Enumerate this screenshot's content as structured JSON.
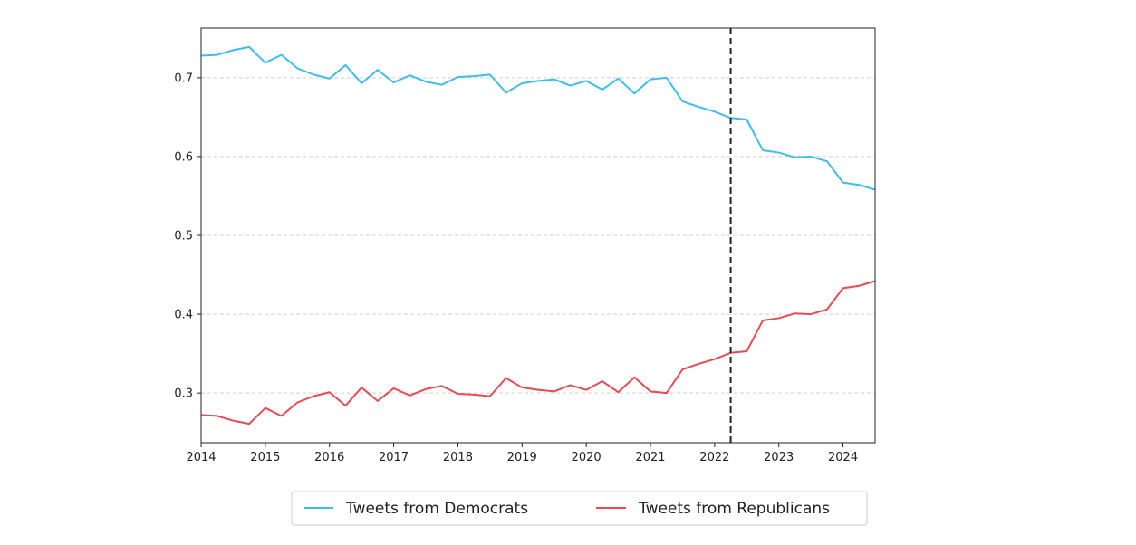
{
  "chart_data": {
    "type": "line",
    "title": "",
    "xlabel": "",
    "ylabel": "",
    "xlim": [
      2014.0,
      2024.5
    ],
    "ylim": [
      0.237,
      0.763
    ],
    "x_ticks": [
      2014,
      2015,
      2016,
      2017,
      2018,
      2019,
      2020,
      2021,
      2022,
      2023,
      2024
    ],
    "x_tick_labels": [
      "2014",
      "2015",
      "2016",
      "2017",
      "2018",
      "2019",
      "2020",
      "2021",
      "2022",
      "2023",
      "2024"
    ],
    "y_ticks": [
      0.3,
      0.4,
      0.5,
      0.6,
      0.7
    ],
    "y_tick_labels": [
      "0.3",
      "0.4",
      "0.5",
      "0.6",
      "0.7"
    ],
    "grid": "horizontal dashed",
    "legend_position": "bottom-center, below plot",
    "vertical_line": {
      "x": 2022.25,
      "style": "dashed",
      "color": "#222222"
    },
    "x": [
      2014.0,
      2014.25,
      2014.5,
      2014.75,
      2015.0,
      2015.25,
      2015.5,
      2015.75,
      2016.0,
      2016.25,
      2016.5,
      2016.75,
      2017.0,
      2017.25,
      2017.5,
      2017.75,
      2018.0,
      2018.25,
      2018.5,
      2018.75,
      2019.0,
      2019.25,
      2019.5,
      2019.75,
      2020.0,
      2020.25,
      2020.5,
      2020.75,
      2021.0,
      2021.25,
      2021.5,
      2021.75,
      2022.0,
      2022.25,
      2022.5,
      2022.75,
      2023.0,
      2023.25,
      2023.5,
      2023.75,
      2024.0,
      2024.25,
      2024.5
    ],
    "series": [
      {
        "name": "Tweets from Democrats",
        "color": "#3dbdf2",
        "values": [
          0.728,
          0.729,
          0.735,
          0.739,
          0.719,
          0.729,
          0.712,
          0.704,
          0.699,
          0.716,
          0.693,
          0.71,
          0.694,
          0.703,
          0.695,
          0.691,
          0.701,
          0.702,
          0.704,
          0.681,
          0.693,
          0.696,
          0.698,
          0.69,
          0.696,
          0.685,
          0.699,
          0.68,
          0.698,
          0.7,
          0.67,
          0.663,
          0.657,
          0.649,
          0.647,
          0.608,
          0.605,
          0.599,
          0.6,
          0.594,
          0.567,
          0.564,
          0.558
        ]
      },
      {
        "name": "Tweets from Republicans",
        "color": "#ea4a52",
        "values": [
          0.272,
          0.271,
          0.265,
          0.261,
          0.281,
          0.271,
          0.288,
          0.296,
          0.301,
          0.284,
          0.307,
          0.29,
          0.306,
          0.297,
          0.305,
          0.309,
          0.299,
          0.298,
          0.296,
          0.319,
          0.307,
          0.304,
          0.302,
          0.31,
          0.304,
          0.315,
          0.301,
          0.32,
          0.302,
          0.3,
          0.33,
          0.337,
          0.343,
          0.351,
          0.353,
          0.392,
          0.395,
          0.401,
          0.4,
          0.406,
          0.433,
          0.436,
          0.442
        ]
      }
    ]
  }
}
